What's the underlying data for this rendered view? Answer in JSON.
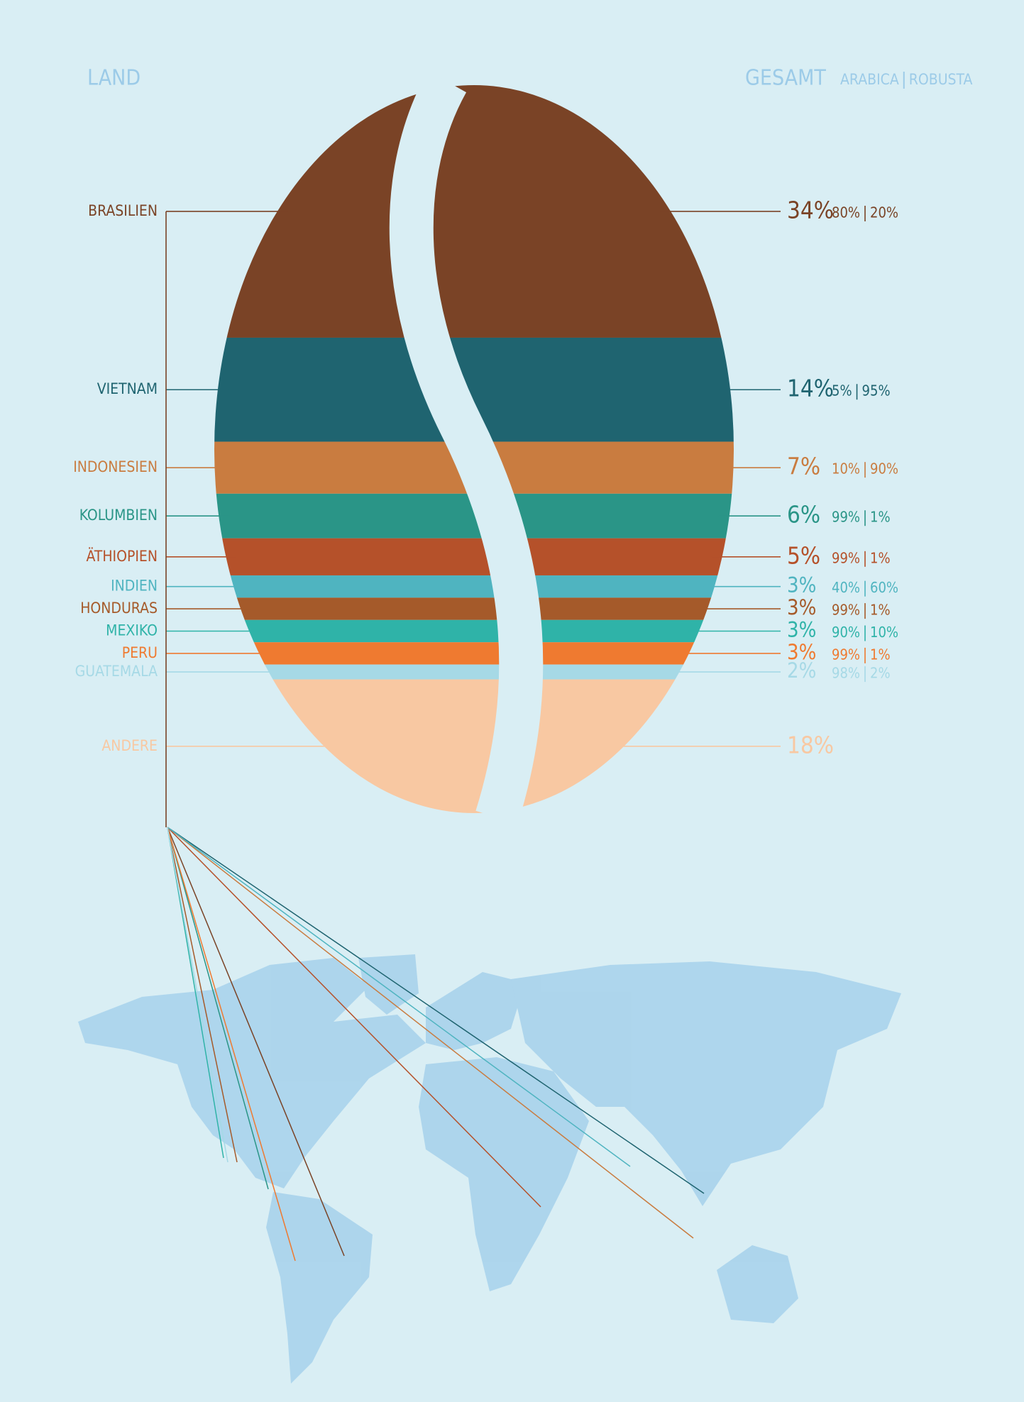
{
  "chart_data": {
    "type": "bean",
    "x_label": "LAND",
    "y_label": "GESAMT",
    "categories": [
      "BRASILIEN",
      "VIETNAM",
      "INDONESIEN",
      "KOLUMBIEN",
      "ÄTHIOPIEN",
      "INDIEN",
      "HONDURAS",
      "MEXIKO",
      "PERU",
      "GUATEMALA",
      "ANDERE"
    ],
    "values": [
      34,
      14,
      7,
      6,
      5,
      3,
      3,
      3,
      3,
      2,
      18
    ],
    "value_labels": [
      "34%",
      "14%",
      "7%",
      "6%",
      "5%",
      "3%",
      "3%",
      "3%",
      "3%",
      "2%",
      "18%"
    ],
    "colors": [
      "#7a4326",
      "#1f6470",
      "#c97c40",
      "#2a9587",
      "#b5512a",
      "#4fb4c0",
      "#a55a2a",
      "#2fb3a8",
      "#ef7a30",
      "#a6d9e6",
      "#f8c8a2"
    ],
    "series": [
      {
        "name": "ARABICA",
        "values": [
          80,
          5,
          10,
          99,
          99,
          40,
          99,
          90,
          99,
          98,
          null
        ],
        "value_labels": [
          "80%",
          "5%",
          "10%",
          "99%",
          "99%",
          "40%",
          "99%",
          "90%",
          "99%",
          "98%",
          null
        ]
      },
      {
        "name": "ROBUSTA",
        "values": [
          20,
          95,
          90,
          1,
          1,
          60,
          1,
          10,
          1,
          2,
          null
        ],
        "value_labels": [
          "20%",
          "95%",
          "90%",
          "1%",
          "1%",
          "60%",
          "1%",
          "10%",
          "1%",
          "2%",
          null
        ]
      }
    ]
  }
}
